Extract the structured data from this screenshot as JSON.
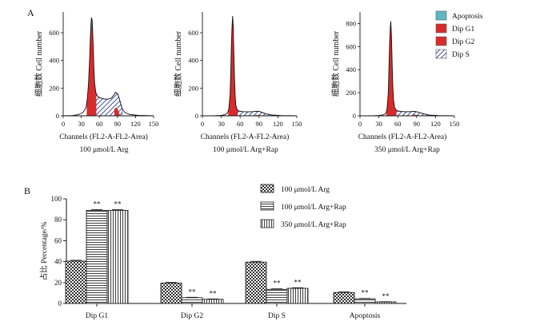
{
  "panel_a_label": "A",
  "panel_b_label": "B",
  "histogram_legend": [
    {
      "label": "Apoptosis",
      "color": "#5fb7c4",
      "pattern": "solid"
    },
    {
      "label": "Dip G1",
      "color": "#d92b2b",
      "pattern": "solid"
    },
    {
      "label": "Dip G2",
      "color": "#d92b2b",
      "pattern": "solid"
    },
    {
      "label": "Dip S",
      "color": "#ffffff",
      "pattern": "hatch"
    }
  ],
  "bar_legend": [
    {
      "label": "100 μmol/L Arg",
      "pattern": "checker"
    },
    {
      "label": "100 μmol/L Arg+Rap",
      "pattern": "hlines"
    },
    {
      "label": "350 μmol/L Arg+Rap",
      "pattern": "vlines"
    }
  ],
  "significance_marker": "**",
  "chart_data": [
    {
      "type": "area",
      "title": "100 μmol/L Arg",
      "xlabel": "Channels (FL2-A-FL2-Area)",
      "ylabel": "细胞数 Cell number",
      "xlim": [
        0,
        150
      ],
      "ylim": [
        0,
        750
      ],
      "xticks": [
        0,
        30,
        60,
        90,
        120,
        150
      ],
      "yticks": [
        0,
        200,
        400,
        600
      ],
      "outline": [
        [
          0,
          0
        ],
        [
          15,
          2
        ],
        [
          25,
          8
        ],
        [
          33,
          25
        ],
        [
          38,
          60
        ],
        [
          40,
          120
        ],
        [
          42,
          230
        ],
        [
          44,
          420
        ],
        [
          45,
          560
        ],
        [
          46,
          660
        ],
        [
          47,
          710
        ],
        [
          48,
          690
        ],
        [
          49,
          600
        ],
        [
          50,
          470
        ],
        [
          51,
          340
        ],
        [
          52,
          240
        ],
        [
          54,
          170
        ],
        [
          57,
          140
        ],
        [
          62,
          128
        ],
        [
          70,
          120
        ],
        [
          75,
          120
        ],
        [
          80,
          128
        ],
        [
          84,
          150
        ],
        [
          87,
          170
        ],
        [
          90,
          160
        ],
        [
          92,
          140
        ],
        [
          94,
          110
        ],
        [
          96,
          80
        ],
        [
          98,
          50
        ],
        [
          102,
          25
        ],
        [
          110,
          10
        ],
        [
          125,
          3
        ],
        [
          150,
          0
        ]
      ],
      "g1_peak_range": [
        39,
        55
      ],
      "g2_peak_range": [
        85,
        96
      ],
      "s_phase_range": [
        48,
        98
      ]
    },
    {
      "type": "area",
      "title": "100 μmol/L Arg+Rap",
      "xlabel": "Channels (FL2-A-FL2-Area)",
      "ylabel": "细胞数 Cell number",
      "xlim": [
        0,
        150
      ],
      "ylim": [
        0,
        750
      ],
      "xticks": [
        0,
        30,
        60,
        90,
        120,
        150
      ],
      "yticks": [
        0,
        200,
        400,
        600
      ],
      "outline": [
        [
          0,
          0
        ],
        [
          20,
          1
        ],
        [
          30,
          3
        ],
        [
          36,
          8
        ],
        [
          40,
          20
        ],
        [
          42,
          50
        ],
        [
          44,
          150
        ],
        [
          45,
          300
        ],
        [
          46,
          500
        ],
        [
          47,
          640
        ],
        [
          48,
          720
        ],
        [
          49,
          650
        ],
        [
          50,
          460
        ],
        [
          51,
          280
        ],
        [
          52,
          150
        ],
        [
          53,
          80
        ],
        [
          55,
          45
        ],
        [
          58,
          35
        ],
        [
          64,
          30
        ],
        [
          72,
          28
        ],
        [
          80,
          30
        ],
        [
          86,
          33
        ],
        [
          90,
          32
        ],
        [
          95,
          25
        ],
        [
          100,
          15
        ],
        [
          110,
          6
        ],
        [
          125,
          2
        ],
        [
          150,
          0
        ]
      ],
      "g1_peak_range": [
        41,
        56
      ],
      "g2_peak_range": [
        84,
        95
      ],
      "s_phase_range": [
        52,
        105
      ]
    },
    {
      "type": "area",
      "title": "350 μmol/L Arg+Rap",
      "xlabel": "Channels (FL2-A-FL2-Area)",
      "ylabel": "细胞数 Cell number",
      "xlim": [
        0,
        150
      ],
      "ylim": [
        0,
        900
      ],
      "xticks": [
        0,
        30,
        60,
        90,
        120,
        150
      ],
      "yticks": [
        0,
        200,
        400,
        600,
        800
      ],
      "outline": [
        [
          0,
          0
        ],
        [
          20,
          1
        ],
        [
          30,
          3
        ],
        [
          37,
          8
        ],
        [
          41,
          20
        ],
        [
          43,
          60
        ],
        [
          45,
          200
        ],
        [
          46,
          420
        ],
        [
          47,
          620
        ],
        [
          48,
          760
        ],
        [
          49,
          820
        ],
        [
          50,
          700
        ],
        [
          51,
          480
        ],
        [
          52,
          280
        ],
        [
          53,
          150
        ],
        [
          55,
          70
        ],
        [
          58,
          45
        ],
        [
          64,
          38
        ],
        [
          72,
          35
        ],
        [
          80,
          36
        ],
        [
          86,
          38
        ],
        [
          90,
          35
        ],
        [
          95,
          28
        ],
        [
          102,
          16
        ],
        [
          110,
          6
        ],
        [
          125,
          2
        ],
        [
          150,
          0
        ]
      ],
      "g1_peak_range": [
        42,
        58
      ],
      "g2_peak_range": [
        84,
        95
      ],
      "s_phase_range": [
        55,
        108
      ]
    },
    {
      "type": "bar",
      "categories": [
        "Dip G1",
        "Dip G2",
        "Dip S",
        "Apoptosis"
      ],
      "series": [
        {
          "name": "100 μmol/L Arg",
          "values": [
            40.5,
            19.5,
            39.5,
            10.5
          ],
          "errors": [
            0.8,
            0.6,
            0.8,
            0.5
          ],
          "sig": [
            false,
            false,
            false,
            false
          ]
        },
        {
          "name": "100 μmol/L Arg+Rap",
          "values": [
            89,
            5.5,
            13.5,
            4.5
          ],
          "errors": [
            0.8,
            0.4,
            0.5,
            0.3
          ],
          "sig": [
            true,
            true,
            true,
            true
          ]
        },
        {
          "name": "350 μmol/L Arg+Rap",
          "values": [
            89,
            4,
            14.5,
            1.5
          ],
          "errors": [
            0.6,
            0.3,
            0.5,
            0.2
          ],
          "sig": [
            true,
            true,
            true,
            true
          ]
        }
      ],
      "ylabel": "占比 Percentage/%",
      "ylim": [
        0,
        100
      ],
      "yticks": [
        0,
        20,
        40,
        60,
        80,
        100
      ]
    }
  ]
}
